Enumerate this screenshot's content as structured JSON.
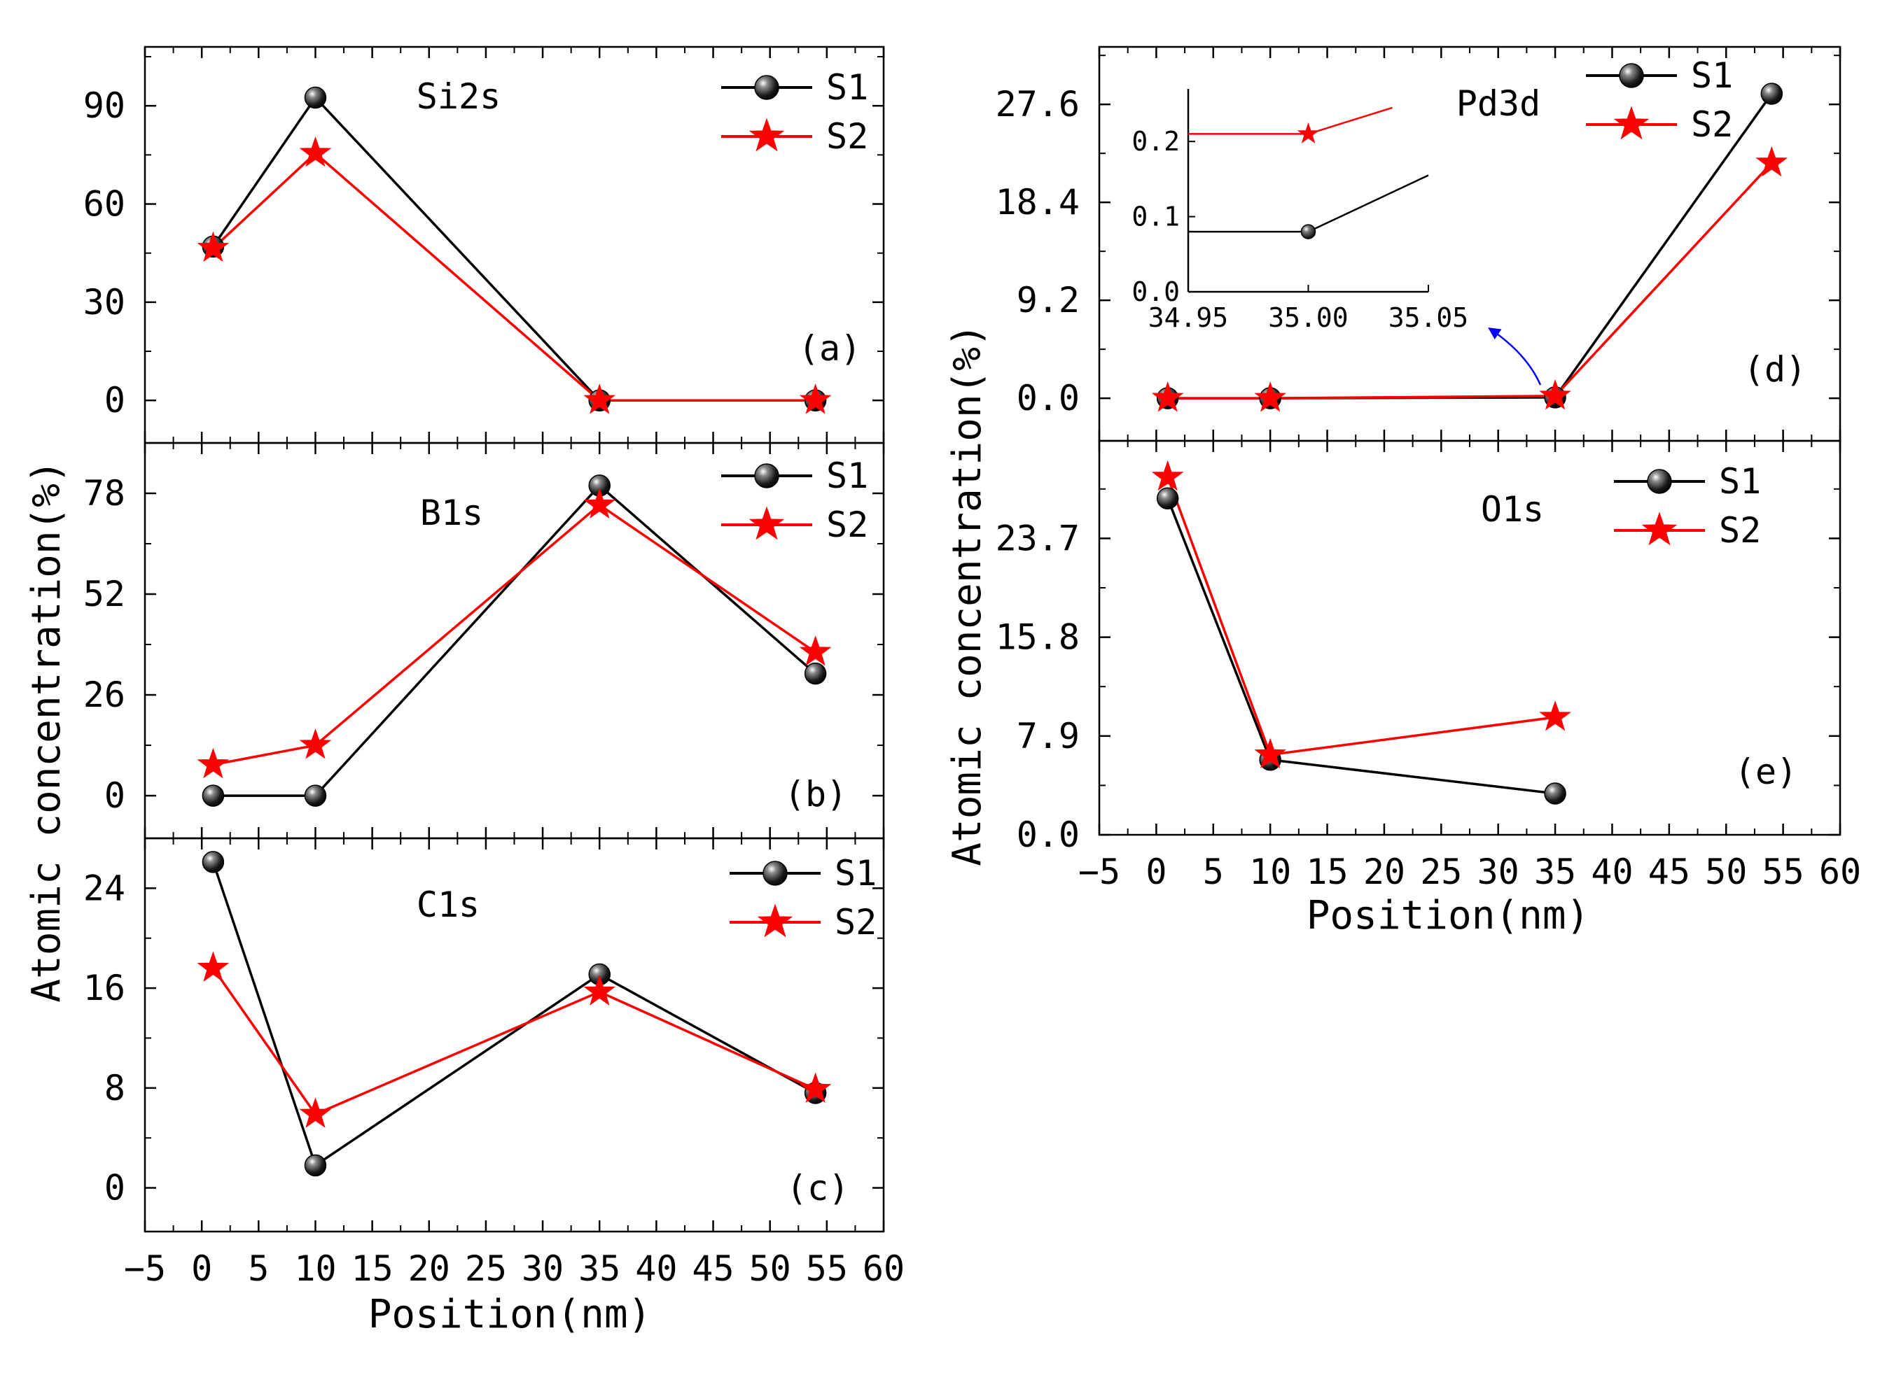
{
  "figure": {
    "ylabel_left": "Atomic concentration(%)",
    "ylabel_right": "Atomic concentration(%)",
    "xlabel_left": "Position(nm)",
    "xlabel_right": "Position(nm)"
  },
  "chart_data": [
    {
      "id": "a",
      "type": "line",
      "title": "Si2s",
      "panel_label": "(a)",
      "xlim": [
        -5,
        60
      ],
      "ylim": [
        -13,
        108
      ],
      "yticks": [
        0,
        30,
        60,
        90
      ],
      "ytick_labels": [
        "0",
        "30",
        "60",
        "90"
      ],
      "legend": {
        "position": "top-right",
        "entries": [
          "S1",
          "S2"
        ]
      },
      "series": [
        {
          "name": "S1",
          "color": "#000000",
          "marker": "sphere",
          "x": [
            1,
            10,
            35,
            54
          ],
          "y": [
            47,
            92.5,
            0,
            0
          ]
        },
        {
          "name": "S2",
          "color": "#ff0000",
          "marker": "star",
          "x": [
            1,
            10,
            35,
            54
          ],
          "y": [
            46.5,
            75.5,
            0,
            0
          ]
        }
      ]
    },
    {
      "id": "b",
      "type": "line",
      "title": "B1s",
      "panel_label": "(b)",
      "xlim": [
        -5,
        60
      ],
      "ylim": [
        -11,
        91
      ],
      "yticks": [
        0,
        26,
        52,
        78
      ],
      "ytick_labels": [
        "0",
        "26",
        "52",
        "78"
      ],
      "legend": {
        "position": "top-right",
        "entries": [
          "S1",
          "S2"
        ]
      },
      "series": [
        {
          "name": "S1",
          "color": "#000000",
          "marker": "sphere",
          "x": [
            1,
            10,
            35,
            54
          ],
          "y": [
            0,
            0,
            80,
            31.5
          ]
        },
        {
          "name": "S2",
          "color": "#ff0000",
          "marker": "star",
          "x": [
            1,
            10,
            35,
            54
          ],
          "y": [
            8,
            13,
            75,
            37
          ]
        }
      ]
    },
    {
      "id": "c",
      "type": "line",
      "title": "C1s",
      "panel_label": "(c)",
      "xlim": [
        -5,
        60
      ],
      "ylim": [
        -3.5,
        28
      ],
      "yticks": [
        0,
        8,
        16,
        24
      ],
      "ytick_labels": [
        "0",
        "8",
        "16",
        "24"
      ],
      "xticks": [
        -5,
        0,
        5,
        10,
        15,
        20,
        25,
        30,
        35,
        40,
        45,
        50,
        55,
        60
      ],
      "xtick_labels": [
        "−5",
        "0",
        "5",
        "10",
        "15",
        "20",
        "25",
        "30",
        "35",
        "40",
        "45",
        "50",
        "55",
        "60"
      ],
      "legend": {
        "position": "top-right",
        "entries": [
          "S1",
          "S2"
        ]
      },
      "series": [
        {
          "name": "S1",
          "color": "#000000",
          "marker": "sphere",
          "x": [
            1,
            10,
            35,
            54
          ],
          "y": [
            26.1,
            1.8,
            17.1,
            7.6
          ]
        },
        {
          "name": "S2",
          "color": "#ff0000",
          "marker": "star",
          "x": [
            1,
            10,
            35,
            54
          ],
          "y": [
            17.6,
            5.9,
            15.7,
            7.9
          ]
        }
      ]
    },
    {
      "id": "d",
      "type": "line",
      "title": "Pd3d",
      "panel_label": "(d)",
      "xlim": [
        -5,
        60
      ],
      "ylim": [
        -4,
        33
      ],
      "yticks": [
        0,
        9.2,
        18.4,
        27.6
      ],
      "ytick_labels": [
        "0.0",
        "9.2",
        "18.4",
        "27.6"
      ],
      "legend": {
        "position": "top-right",
        "entries": [
          "S1",
          "S2"
        ]
      },
      "series": [
        {
          "name": "S1",
          "color": "#000000",
          "marker": "sphere",
          "x": [
            1,
            10,
            35,
            54
          ],
          "y": [
            0,
            0,
            0.08,
            28.6
          ]
        },
        {
          "name": "S2",
          "color": "#ff0000",
          "marker": "star",
          "x": [
            1,
            10,
            35,
            54
          ],
          "y": [
            0,
            0,
            0.21,
            22.1
          ]
        }
      ],
      "inset": {
        "type": "line",
        "xlim": [
          34.95,
          35.05
        ],
        "ylim": [
          0,
          0.27
        ],
        "xticks": [
          34.95,
          35.0,
          35.05
        ],
        "xtick_labels": [
          "34.95",
          "35.00",
          "35.05"
        ],
        "yticks": [
          0,
          0.1,
          0.2
        ],
        "ytick_labels": [
          "0.0",
          "0.1",
          "0.2"
        ],
        "series": [
          {
            "name": "S1",
            "color": "#000000",
            "marker": "sphere",
            "x": [
              34.95,
              35.0,
              35.05
            ],
            "y": [
              0.08,
              0.08,
              0.155
            ],
            "marker_x": [
              35.0
            ]
          },
          {
            "name": "S2",
            "color": "#ff0000",
            "marker": "star",
            "x": [
              34.95,
              35.0,
              35.035
            ],
            "y": [
              0.21,
              0.21,
              0.245
            ],
            "marker_x": [
              35.0
            ]
          }
        ]
      }
    },
    {
      "id": "e",
      "type": "line",
      "title": "O1s",
      "panel_label": "(e)",
      "xlim": [
        -5,
        60
      ],
      "ylim": [
        0,
        31.5
      ],
      "yticks": [
        0,
        7.9,
        15.8,
        23.7
      ],
      "ytick_labels": [
        "0.0",
        "7.9",
        "15.8",
        "23.7"
      ],
      "xticks": [
        -5,
        0,
        5,
        10,
        15,
        20,
        25,
        30,
        35,
        40,
        45,
        50,
        55,
        60
      ],
      "xtick_labels": [
        "−5",
        "0",
        "5",
        "10",
        "15",
        "20",
        "25",
        "30",
        "35",
        "40",
        "45",
        "50",
        "55",
        "60"
      ],
      "legend": {
        "position": "top-right",
        "entries": [
          "S1",
          "S2"
        ]
      },
      "series": [
        {
          "name": "S1",
          "color": "#000000",
          "marker": "sphere",
          "x": [
            1,
            10,
            35
          ],
          "y": [
            26.9,
            6.0,
            3.3
          ]
        },
        {
          "name": "S2",
          "color": "#ff0000",
          "marker": "star",
          "x": [
            1,
            10,
            35
          ],
          "y": [
            28.6,
            6.4,
            9.4
          ]
        }
      ]
    }
  ]
}
